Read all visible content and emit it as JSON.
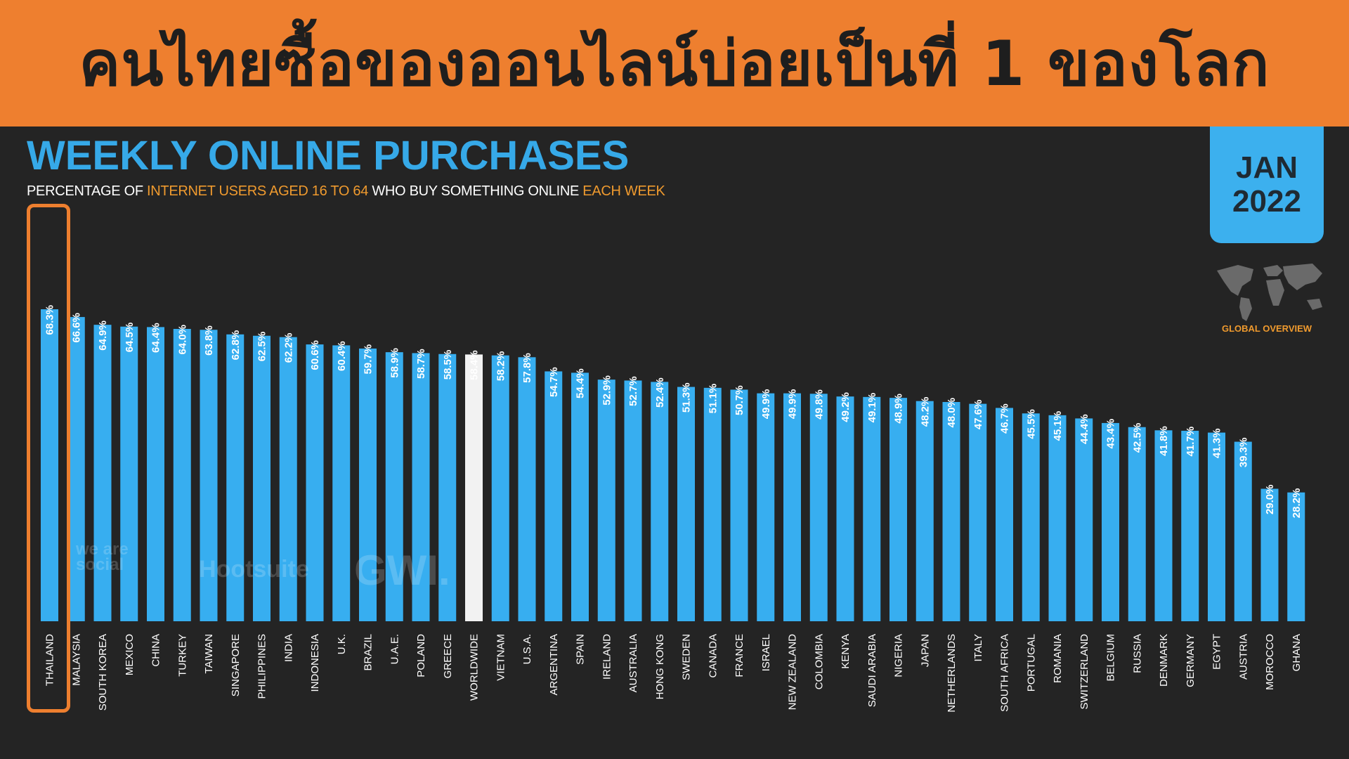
{
  "banner": {
    "title": "คนไทยซื้อของออนไลน์บ่อยเป็นที่ 1 ของโลก",
    "bg_color": "#ee7f2f"
  },
  "header": {
    "title": "WEEKLY ONLINE PURCHASES",
    "subtitle_parts": [
      "PERCENTAGE OF ",
      "INTERNET USERS AGED  16 TO 64",
      " WHO BUY SOMETHING ONLINE ",
      "EACH WEEK"
    ],
    "date_month": "JAN",
    "date_year": "2022",
    "map_label": "GLOBAL OVERVIEW"
  },
  "watermarks": {
    "we_are_social": "we are social",
    "hootsuite": "Hootsuite",
    "gwi": "GWI."
  },
  "colors": {
    "bar": "#37aef0",
    "highlight_bar": "#f2f2f2",
    "highlight_box": "#ee7f2f",
    "title": "#36a9e8",
    "accent": "#ef9a2e",
    "background": "#242424"
  },
  "chart_data": {
    "type": "bar",
    "title": "WEEKLY ONLINE PURCHASES",
    "categories": [
      "THAILAND",
      "MALAYSIA",
      "SOUTH KOREA",
      "MEXICO",
      "CHINA",
      "TURKEY",
      "TAIWAN",
      "SINGAPORE",
      "PHILIPPINES",
      "INDIA",
      "INDONESIA",
      "U.K.",
      "BRAZIL",
      "U.A.E.",
      "POLAND",
      "GREECE",
      "WORLDWIDE",
      "VIETNAM",
      "U.S.A.",
      "ARGENTINA",
      "SPAIN",
      "IRELAND",
      "AUSTRALIA",
      "HONG KONG",
      "SWEDEN",
      "CANADA",
      "FRANCE",
      "ISRAEL",
      "NEW ZEALAND",
      "COLOMBIA",
      "KENYA",
      "SAUDI ARABIA",
      "NIGERIA",
      "JAPAN",
      "NETHERLANDS",
      "ITALY",
      "SOUTH AFRICA",
      "PORTUGAL",
      "ROMANIA",
      "SWITZERLAND",
      "BELGIUM",
      "RUSSIA",
      "DENMARK",
      "GERMANY",
      "EGYPT",
      "AUSTRIA",
      "MOROCCO",
      "GHANA"
    ],
    "values": [
      68.3,
      66.6,
      64.9,
      64.5,
      64.4,
      64.0,
      63.8,
      62.8,
      62.5,
      62.2,
      60.6,
      60.4,
      59.7,
      58.9,
      58.7,
      58.5,
      58.4,
      58.2,
      57.8,
      54.7,
      54.4,
      52.9,
      52.7,
      52.4,
      51.3,
      51.1,
      50.7,
      49.9,
      49.9,
      49.8,
      49.2,
      49.1,
      48.9,
      48.2,
      48.0,
      47.6,
      46.7,
      45.5,
      45.1,
      44.4,
      43.4,
      42.5,
      41.8,
      41.7,
      41.3,
      39.3,
      29.0,
      28.2
    ],
    "value_labels": [
      "68.3%",
      "66.6%",
      "64.9%",
      "64.5%",
      "64.4%",
      "64.0%",
      "63.8%",
      "62.8%",
      "62.5%",
      "62.2%",
      "60.6%",
      "60.4%",
      "59.7%",
      "58.9%",
      "58.7%",
      "58.5%",
      "58.4%",
      "58.2%",
      "57.8%",
      "54.7%",
      "54.4%",
      "52.9%",
      "52.7%",
      "52.4%",
      "51.3%",
      "51.1%",
      "50.7%",
      "49.9%",
      "49.9%",
      "49.8%",
      "49.2%",
      "49.1%",
      "48.9%",
      "48.2%",
      "48.0%",
      "47.6%",
      "46.7%",
      "45.5%",
      "45.1%",
      "44.4%",
      "43.4%",
      "42.5%",
      "41.8%",
      "41.7%",
      "41.3%",
      "39.3%",
      "29.0%",
      "28.2%"
    ],
    "highlight_category": "WORLDWIDE",
    "boxed_category": "THAILAND",
    "ylim": [
      0,
      100
    ],
    "grid": false,
    "xlabel": "",
    "ylabel": ""
  }
}
